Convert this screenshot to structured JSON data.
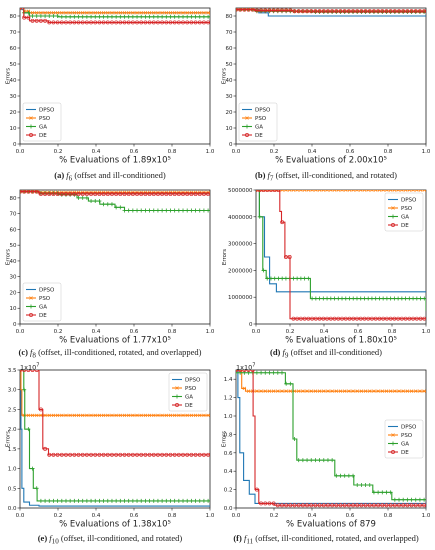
{
  "colors": {
    "DPSO": "#1f77b4",
    "PSO": "#ff7f0e",
    "GA": "#2ca02c",
    "DE": "#d62728"
  },
  "chart_data": [
    {
      "type": "line",
      "xlabel": "% Evaluations of 1.89x10⁵",
      "ylabel": "Errors",
      "xlim": [
        0,
        1.0
      ],
      "ylim": [
        0,
        85
      ],
      "xticks": [
        0.0,
        0.2,
        0.4,
        0.6,
        0.8,
        1.0
      ],
      "xtick_labels": [
        "0.0",
        "0.2",
        "0.4",
        "0.6",
        "0.8",
        "1.0"
      ],
      "yticks": [
        0,
        10,
        20,
        30,
        40,
        50,
        60,
        70,
        80
      ],
      "ytick_labels": [
        "0",
        "10",
        "20",
        "30",
        "40",
        "50",
        "60",
        "70",
        "80"
      ],
      "legend": "lower-left",
      "caption": {
        "letter": "(a)",
        "func": "f",
        "sub": "6",
        "text": " (offset and ill-conditioned)"
      },
      "series": [
        {
          "name": "DPSO",
          "x": [
            0,
            0.01,
            0.02,
            0.1,
            1.0
          ],
          "y": [
            85,
            84,
            82,
            82,
            82
          ]
        },
        {
          "name": "PSO",
          "x": [
            0,
            0.02,
            0.05,
            1.0
          ],
          "y": [
            85,
            83,
            82,
            81
          ]
        },
        {
          "name": "GA",
          "x": [
            0,
            0.02,
            0.05,
            0.2,
            1.0
          ],
          "y": [
            85,
            82,
            80,
            79.5,
            79.5
          ]
        },
        {
          "name": "DE",
          "x": [
            0,
            0.02,
            0.05,
            0.15,
            1.0
          ],
          "y": [
            85,
            79,
            77,
            76,
            76
          ]
        }
      ]
    },
    {
      "type": "line",
      "xlabel": "% Evaluations of 2.00x10⁵",
      "ylabel": "Errors",
      "xlim": [
        0,
        1.0
      ],
      "ylim": [
        0,
        85
      ],
      "xticks": [
        0.0,
        0.2,
        0.4,
        0.6,
        0.8,
        1.0
      ],
      "xtick_labels": [
        "0.0",
        "0.2",
        "0.4",
        "0.6",
        "0.8",
        "1.0"
      ],
      "yticks": [
        0,
        10,
        20,
        30,
        40,
        50,
        60,
        70,
        80
      ],
      "ytick_labels": [
        "0",
        "10",
        "20",
        "30",
        "40",
        "50",
        "60",
        "70",
        "80"
      ],
      "legend": "lower-left",
      "caption": {
        "letter": "(b)",
        "func": "f",
        "sub": "7",
        "text": " (offset, ill-conditioned, and rotated)"
      },
      "series": [
        {
          "name": "DPSO",
          "x": [
            0,
            0.05,
            0.12,
            0.17,
            1.0
          ],
          "y": [
            84,
            84,
            82,
            80,
            80
          ]
        },
        {
          "name": "PSO",
          "x": [
            0,
            0.1,
            0.3,
            1.0
          ],
          "y": [
            84,
            83.5,
            83,
            83
          ]
        },
        {
          "name": "GA",
          "x": [
            0,
            0.1,
            0.4,
            1.0
          ],
          "y": [
            84,
            83,
            82.5,
            82.5
          ]
        },
        {
          "name": "DE",
          "x": [
            0,
            0.1,
            0.3,
            1.0
          ],
          "y": [
            84,
            83.5,
            83,
            83
          ]
        }
      ]
    },
    {
      "type": "line",
      "xlabel": "% Evaluations of 1.77x10⁵",
      "ylabel": "Errors",
      "xlim": [
        0,
        1.0
      ],
      "ylim": [
        0,
        85
      ],
      "xticks": [
        0.0,
        0.2,
        0.4,
        0.6,
        0.8,
        1.0
      ],
      "xtick_labels": [
        "0.0",
        "0.2",
        "0.4",
        "0.6",
        "0.8",
        "1.0"
      ],
      "yticks": [
        0,
        10,
        20,
        30,
        40,
        50,
        60,
        70,
        80
      ],
      "ytick_labels": [
        "0",
        "10",
        "20",
        "30",
        "40",
        "50",
        "60",
        "70",
        "80"
      ],
      "legend": "lower-left",
      "caption": {
        "letter": "(c)",
        "func": "f",
        "sub": "8",
        "text": " (offset, ill-conditioned, rotated, and overlapped)"
      },
      "series": [
        {
          "name": "DPSO",
          "x": [
            0,
            0.1,
            1.0
          ],
          "y": [
            84,
            83,
            83
          ]
        },
        {
          "name": "PSO",
          "x": [
            0,
            0.1,
            1.0
          ],
          "y": [
            84,
            83.5,
            83.5
          ]
        },
        {
          "name": "GA",
          "x": [
            0,
            0.1,
            0.2,
            0.3,
            0.36,
            0.42,
            0.5,
            0.55,
            1.0
          ],
          "y": [
            84,
            83,
            82,
            80,
            78,
            76,
            74,
            72,
            72
          ]
        },
        {
          "name": "DE",
          "x": [
            0,
            0.1,
            1.0
          ],
          "y": [
            84,
            82.5,
            82.5
          ]
        }
      ]
    },
    {
      "type": "line",
      "xlabel": "% Evaluations of 1.80x10⁵",
      "ylabel": "Errors",
      "xlim": [
        0,
        1.0
      ],
      "ylim": [
        0,
        5000000
      ],
      "xticks": [
        0.0,
        0.2,
        0.4,
        0.6,
        0.8,
        1.0
      ],
      "xtick_labels": [
        "0.0",
        "0.2",
        "0.4",
        "0.6",
        "0.8",
        "1.0"
      ],
      "yticks": [
        0,
        1000000,
        2000000,
        3000000,
        4000000,
        5000000
      ],
      "ytick_labels": [
        "0",
        "1000000",
        "2000000",
        "3000000",
        "4000000",
        "5000000"
      ],
      "legend": "top-right",
      "caption": {
        "letter": "(d)",
        "func": "f",
        "sub": "9",
        "text": " (offset and ill-conditioned)"
      },
      "series": [
        {
          "name": "DPSO",
          "x": [
            0,
            0.02,
            0.05,
            0.08,
            0.12,
            1.0
          ],
          "y": [
            5000000,
            4000000,
            2500000,
            1500000,
            1200000,
            1200000
          ]
        },
        {
          "name": "PSO",
          "x": [
            0,
            1.0
          ],
          "y": [
            5000000,
            5000000
          ]
        },
        {
          "name": "GA",
          "x": [
            0,
            0.02,
            0.04,
            0.06,
            0.31,
            0.32,
            0.98,
            1.0
          ],
          "y": [
            5000000,
            4000000,
            2000000,
            1700000,
            1700000,
            950000,
            950000,
            500000
          ]
        },
        {
          "name": "DE",
          "x": [
            0,
            0.1,
            0.14,
            0.15,
            0.17,
            0.2,
            1.0
          ],
          "y": [
            5000000,
            5000000,
            4200000,
            3800000,
            2500000,
            200000,
            200000
          ]
        }
      ]
    },
    {
      "type": "line",
      "xlabel": "% Evaluations of 1.38x10⁵",
      "ylabel": "Errors",
      "multiplier": "1x10",
      "multiplier_exp": "7",
      "xlim": [
        0,
        1.0
      ],
      "ylim": [
        0,
        35000000
      ],
      "xticks": [
        0.0,
        0.2,
        0.4,
        0.6,
        0.8,
        1.0
      ],
      "xtick_labels": [
        "0.0",
        "0.2",
        "0.4",
        "0.6",
        "0.8",
        "1.0"
      ],
      "yticks": [
        0,
        5000000,
        10000000,
        15000000,
        20000000,
        25000000,
        30000000,
        35000000
      ],
      "ytick_labels": [
        "0.0",
        "0.5",
        "1.0",
        "1.5",
        "2.0",
        "2.5",
        "3.0",
        "3.5"
      ],
      "legend": "top-right",
      "caption": {
        "letter": "(e)",
        "func": "f",
        "sub": "10",
        "text": " (offset, ill-conditioned, and rotated)"
      },
      "series": [
        {
          "name": "DPSO",
          "x": [
            0,
            0.005,
            0.01,
            0.02,
            0.05,
            0.1,
            1.0
          ],
          "y": [
            35000000,
            20000000,
            5000000,
            1500000,
            700000,
            500000,
            500000
          ]
        },
        {
          "name": "PSO",
          "x": [
            0,
            0.005,
            0.01,
            1.0
          ],
          "y": [
            35000000,
            30000000,
            23500000,
            23500000
          ]
        },
        {
          "name": "GA",
          "x": [
            0,
            0.02,
            0.025,
            0.05,
            0.07,
            0.09,
            1.0
          ],
          "y": [
            35000000,
            30000000,
            20000000,
            10000000,
            5000000,
            1800000,
            1800000
          ]
        },
        {
          "name": "DE",
          "x": [
            0,
            0.09,
            0.1,
            0.12,
            0.15,
            1.0
          ],
          "y": [
            35000000,
            35000000,
            25000000,
            15000000,
            13500000,
            13500000
          ]
        }
      ]
    },
    {
      "type": "line",
      "xlabel": "% Evaluations of 879",
      "ylabel": "Errors",
      "multiplier": "1x10",
      "multiplier_exp": "7",
      "xlim": [
        0,
        1.0
      ],
      "ylim": [
        0,
        15000000
      ],
      "xticks": [
        0.0,
        0.2,
        0.4,
        0.6,
        0.8,
        1.0
      ],
      "xtick_labels": [
        "0.0",
        "0.2",
        "0.4",
        "0.6",
        "0.8",
        "1.0"
      ],
      "yticks": [
        0,
        2000000,
        4000000,
        6000000,
        8000000,
        10000000,
        12000000,
        14000000
      ],
      "ytick_labels": [
        "0.0",
        "0.2",
        "0.4",
        "0.6",
        "0.8",
        "1.0",
        "1.2",
        "1.4"
      ],
      "legend": "center-right",
      "caption": {
        "letter": "(f)",
        "func": "f",
        "sub": "11",
        "text": " (offset, ill-conditioned, rotated, and overlapped)"
      },
      "series": [
        {
          "name": "DPSO",
          "x": [
            0,
            0.01,
            0.02,
            0.04,
            0.07,
            0.1,
            1.0
          ],
          "y": [
            15000000,
            12000000,
            6000000,
            3000000,
            1500000,
            500000,
            500000
          ]
        },
        {
          "name": "PSO",
          "x": [
            0,
            0.03,
            0.05,
            1.0
          ],
          "y": [
            15000000,
            13000000,
            12700000,
            12700000
          ]
        },
        {
          "name": "GA",
          "x": [
            0,
            0.24,
            0.26,
            0.3,
            0.32,
            0.5,
            0.52,
            0.6,
            0.62,
            0.7,
            0.72,
            0.8,
            0.82,
            1.0
          ],
          "y": [
            14700000,
            14700000,
            13500000,
            7500000,
            5200000,
            5200000,
            3500000,
            3500000,
            2500000,
            2500000,
            1700000,
            1700000,
            900000,
            900000
          ]
        },
        {
          "name": "DE",
          "x": [
            0,
            0.08,
            0.09,
            0.1,
            0.12,
            0.2,
            1.0
          ],
          "y": [
            15000000,
            15000000,
            10000000,
            2000000,
            500000,
            300000,
            300000
          ]
        }
      ]
    }
  ]
}
